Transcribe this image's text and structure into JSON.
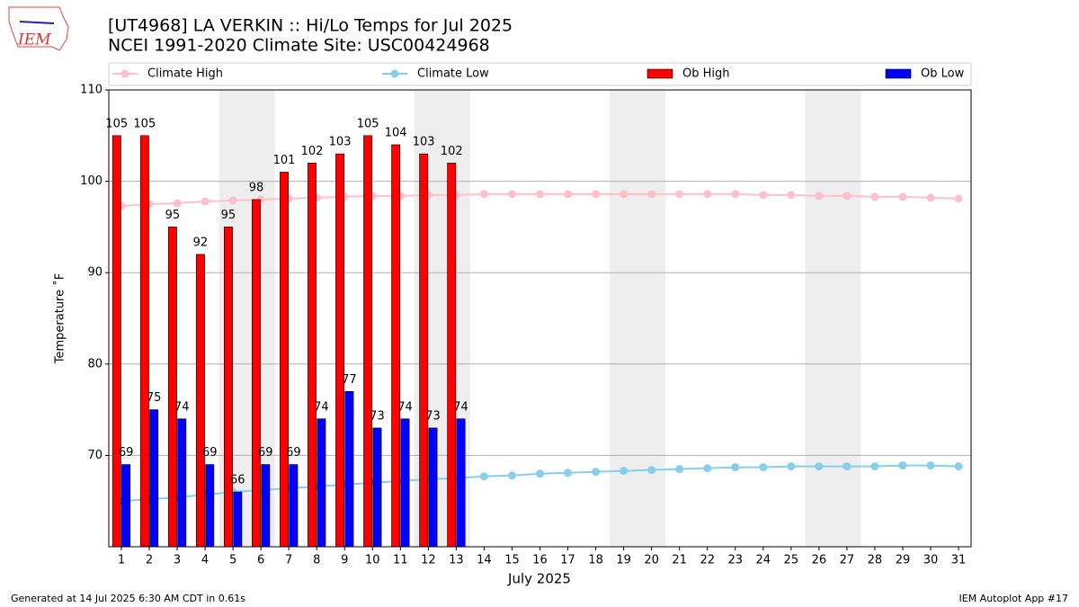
{
  "chart_data": {
    "type": "bar",
    "logo_text": "IEM",
    "title": "[UT4968] LA VERKIN :: Hi/Lo Temps for Jul 2025",
    "subtitle": "NCEI 1991-2020 Climate Site: USC00424968",
    "x_label": "July 2025",
    "y_label": "Temperature ˚F",
    "footer_left": "Generated at 14 Jul 2025 6:30 AM CDT in 0.61s",
    "footer_right": "IEM Autoplot App #17",
    "x": [
      1,
      2,
      3,
      4,
      5,
      6,
      7,
      8,
      9,
      10,
      11,
      12,
      13,
      14,
      15,
      16,
      17,
      18,
      19,
      20,
      21,
      22,
      23,
      24,
      25,
      26,
      27,
      28,
      29,
      30,
      31
    ],
    "xlim": [
      0.55,
      31.45
    ],
    "xticks": [
      1,
      2,
      3,
      4,
      5,
      6,
      7,
      8,
      9,
      10,
      11,
      12,
      13,
      14,
      15,
      16,
      17,
      18,
      19,
      20,
      21,
      22,
      23,
      24,
      25,
      26,
      27,
      28,
      29,
      30,
      31
    ],
    "ylim": [
      60,
      110
    ],
    "yticks": [
      70,
      80,
      90,
      100,
      110
    ],
    "grid": true,
    "legend": "top",
    "shaded_spans": [
      [
        4.5,
        6.5
      ],
      [
        11.5,
        13.5
      ],
      [
        18.5,
        20.5
      ],
      [
        25.5,
        27.5
      ]
    ],
    "shade_color": "#eeeeee",
    "series": [
      {
        "name": "Climate High",
        "kind": "line",
        "color": "#ffc0cb",
        "values": [
          97.3,
          97.5,
          97.6,
          97.8,
          97.9,
          98.0,
          98.1,
          98.2,
          98.3,
          98.4,
          98.4,
          98.5,
          98.5,
          98.6,
          98.6,
          98.6,
          98.6,
          98.6,
          98.6,
          98.6,
          98.6,
          98.6,
          98.6,
          98.5,
          98.5,
          98.4,
          98.4,
          98.3,
          98.3,
          98.2,
          98.1
        ]
      },
      {
        "name": "Climate Low",
        "kind": "line",
        "color": "#87ceeb",
        "values": [
          65.0,
          65.2,
          65.4,
          65.7,
          66.0,
          66.2,
          66.4,
          66.6,
          66.8,
          67.0,
          67.2,
          67.4,
          67.5,
          67.7,
          67.8,
          68.0,
          68.1,
          68.2,
          68.3,
          68.4,
          68.5,
          68.6,
          68.7,
          68.7,
          68.8,
          68.8,
          68.8,
          68.8,
          68.9,
          68.9,
          68.8
        ]
      },
      {
        "name": "Ob High",
        "kind": "bar",
        "color": "#ff0000",
        "values": [
          105,
          105,
          95,
          92,
          95,
          98,
          101,
          102,
          103,
          105,
          104,
          103,
          102,
          null,
          null,
          null,
          null,
          null,
          null,
          null,
          null,
          null,
          null,
          null,
          null,
          null,
          null,
          null,
          null,
          null,
          null
        ]
      },
      {
        "name": "Ob Low",
        "kind": "bar",
        "color": "#0000ff",
        "values": [
          69,
          75,
          74,
          69,
          66,
          69,
          69,
          74,
          77,
          73,
          74,
          73,
          74,
          null,
          null,
          null,
          null,
          null,
          null,
          null,
          null,
          null,
          null,
          null,
          null,
          null,
          null,
          null,
          null,
          null,
          null
        ]
      }
    ]
  }
}
